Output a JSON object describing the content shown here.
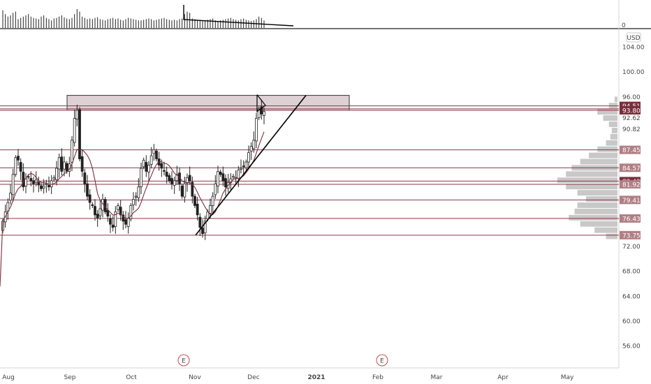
{
  "chart_data": {
    "type": "candlestick",
    "currency": "USD",
    "volume_zero_label": "0",
    "y_ticks": [
      104,
      100,
      96,
      92.62,
      90.82,
      72,
      68,
      64,
      60,
      56
    ],
    "y_tick_labels": [
      "104.00",
      "100.00",
      "96.00",
      "92.62",
      "90.82",
      "72.00",
      "68.00",
      "64.00",
      "60.00",
      "56.00"
    ],
    "x_labels": [
      "Aug",
      "Sep",
      "Oct",
      "Nov",
      "Dec",
      "2021",
      "Feb",
      "Mar",
      "Apr",
      "May"
    ],
    "earnings_marker_label": "E",
    "earnings_markers": [
      "Oct 29 2020",
      "Jan 28 2021"
    ],
    "levels": [
      {
        "value": 94.51,
        "label": "94.51",
        "style": "dark"
      },
      {
        "value": 94.04,
        "label": "94.04",
        "style": "plain"
      },
      {
        "value": 93.8,
        "label": "93.80",
        "style": "dark"
      },
      {
        "value": 87.45,
        "label": "87.45",
        "style": "light"
      },
      {
        "value": 84.57,
        "label": "84.57",
        "style": "light"
      },
      {
        "value": 82.43,
        "label": "82.43",
        "style": "dark"
      },
      {
        "value": 81.92,
        "label": "81.92",
        "style": "light"
      },
      {
        "value": 79.41,
        "label": "79.41",
        "style": "light"
      },
      {
        "value": 76.43,
        "label": "76.43",
        "style": "light"
      },
      {
        "value": 73.75,
        "label": "73.75",
        "style": "light"
      }
    ],
    "colors": {
      "level_line": "#8b3a4a",
      "dark_label": "#7a2e3c",
      "light_label": "#b07f85",
      "zone_fill": "#d8c8cc",
      "profile": "#c8c8c8",
      "ma": "#7a2e3c",
      "candle": "#222222"
    },
    "closes": [
      76.0,
      77.5,
      79.0,
      80.5,
      83.5,
      86.2,
      85.8,
      84.0,
      81.5,
      82.8,
      83.1,
      82.5,
      82.0,
      82.6,
      81.8,
      81.2,
      81.6,
      82.0,
      81.5,
      82.5,
      83.0,
      84.5,
      86.2,
      84.0,
      85.5,
      84.0,
      85.2,
      89.0,
      92.5,
      93.8,
      86.0,
      84.0,
      82.0,
      80.0,
      79.0,
      78.5,
      77.0,
      76.5,
      78.0,
      79.5,
      77.5,
      76.8,
      75.5,
      75.0,
      77.5,
      78.5,
      77.0,
      76.0,
      75.5,
      76.5,
      78.5,
      79.5,
      80.0,
      81.5,
      84.5,
      85.8,
      84.0,
      85.0,
      86.5,
      87.5,
      86.0,
      85.0,
      84.5,
      84.0,
      83.2,
      82.5,
      82.0,
      82.5,
      83.5,
      82.0,
      80.0,
      82.0,
      83.0,
      82.5,
      80.0,
      78.5,
      77.0,
      75.0,
      74.0,
      76.0,
      77.5,
      78.5,
      80.0,
      82.0,
      84.0,
      83.5,
      82.5,
      81.5,
      82.2,
      82.8,
      83.2,
      83.0,
      84.2,
      84.5,
      84.8,
      85.5,
      87.0,
      88.0,
      89.0,
      92.5,
      94.0,
      93.2,
      93.6
    ],
    "profile": [
      [
        95.5,
        2
      ],
      [
        94.5,
        6
      ],
      [
        93.5,
        14
      ],
      [
        92.5,
        10
      ],
      [
        91.5,
        6
      ],
      [
        90.5,
        4
      ],
      [
        89.5,
        5
      ],
      [
        88.5,
        8
      ],
      [
        87.5,
        14
      ],
      [
        86.5,
        20
      ],
      [
        85.5,
        26
      ],
      [
        84.5,
        32
      ],
      [
        83.5,
        36
      ],
      [
        82.5,
        42
      ],
      [
        81.5,
        36
      ],
      [
        80.5,
        28
      ],
      [
        79.5,
        22
      ],
      [
        78.5,
        28
      ],
      [
        77.5,
        30
      ],
      [
        76.5,
        34
      ],
      [
        75.5,
        26
      ],
      [
        74.5,
        16
      ],
      [
        73.5,
        8
      ]
    ],
    "volume": [
      28,
      22,
      18,
      20,
      24,
      26,
      14,
      16,
      18,
      20,
      22,
      18,
      16,
      15,
      14,
      18,
      20,
      16,
      14,
      12,
      15,
      16,
      18,
      20,
      17,
      15,
      14,
      16,
      22,
      30,
      26,
      18,
      16,
      14,
      15,
      14,
      16,
      17,
      14,
      13,
      12,
      14,
      15,
      16,
      14,
      15,
      13,
      12,
      14,
      16,
      15,
      14,
      13,
      12,
      12,
      13,
      14,
      15,
      14,
      12,
      13,
      14,
      15,
      16,
      14,
      13,
      12,
      13,
      12,
      14,
      15,
      22,
      26,
      24,
      15,
      14,
      13,
      12,
      11,
      12,
      13,
      14,
      15,
      12,
      11,
      12,
      13,
      14,
      15,
      16,
      14,
      13,
      12,
      14,
      15,
      13,
      12,
      11,
      12,
      14,
      18,
      16,
      12
    ]
  }
}
